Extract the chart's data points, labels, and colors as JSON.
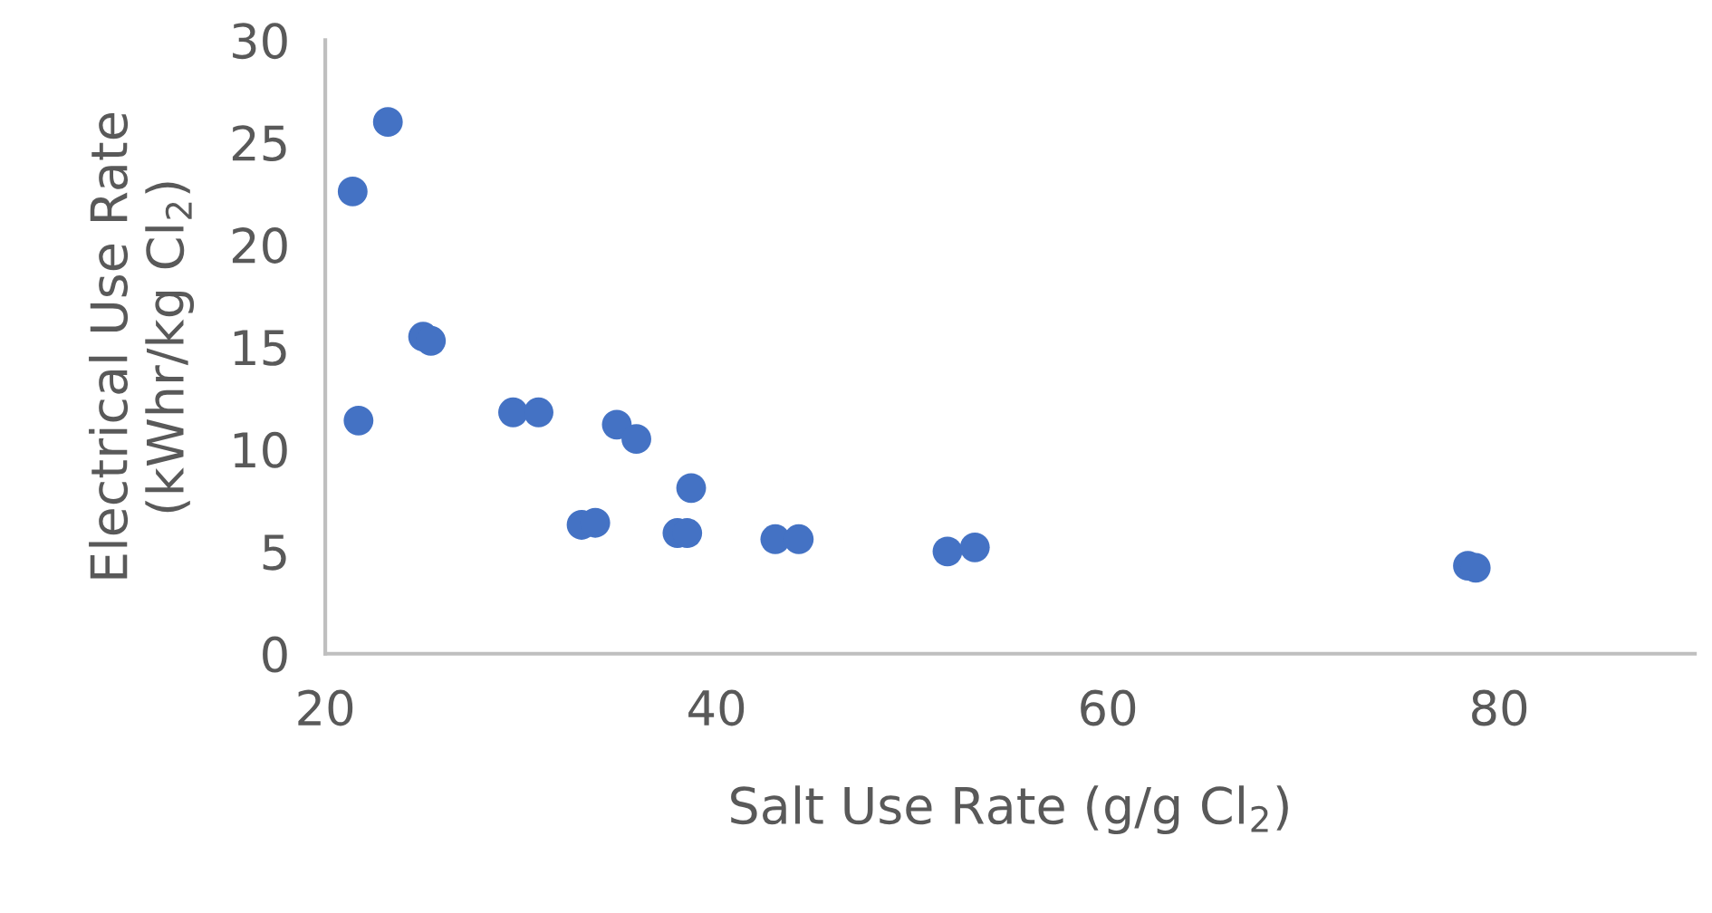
{
  "chart_data": {
    "type": "scatter",
    "xlabel": "Salt Use Rate (g/g Cl$_{2}$)",
    "ylabel": "Electrical Use Rate\n(kWhr/kg Cl$_{2}$)",
    "x": [
      21.4,
      23.2,
      21.7,
      25.0,
      25.4,
      29.6,
      30.9,
      34.9,
      35.9,
      33.1,
      33.8,
      38.7,
      38.0,
      38.5,
      43.0,
      44.2,
      51.8,
      53.2,
      78.4,
      78.8
    ],
    "values": [
      22.6,
      26.0,
      11.4,
      15.5,
      15.3,
      11.8,
      11.8,
      11.2,
      10.5,
      6.3,
      6.4,
      8.1,
      5.9,
      5.9,
      5.6,
      5.6,
      5.0,
      5.2,
      4.3,
      4.2
    ],
    "color": "#4472c4",
    "marker": "circle",
    "xlim": [
      20,
      90
    ],
    "xticks": [
      20,
      40,
      60,
      80
    ],
    "ylim": [
      0,
      30
    ],
    "yticks": [
      0,
      5,
      10,
      15,
      20,
      25,
      30
    ],
    "grid": false,
    "legend": false
  }
}
